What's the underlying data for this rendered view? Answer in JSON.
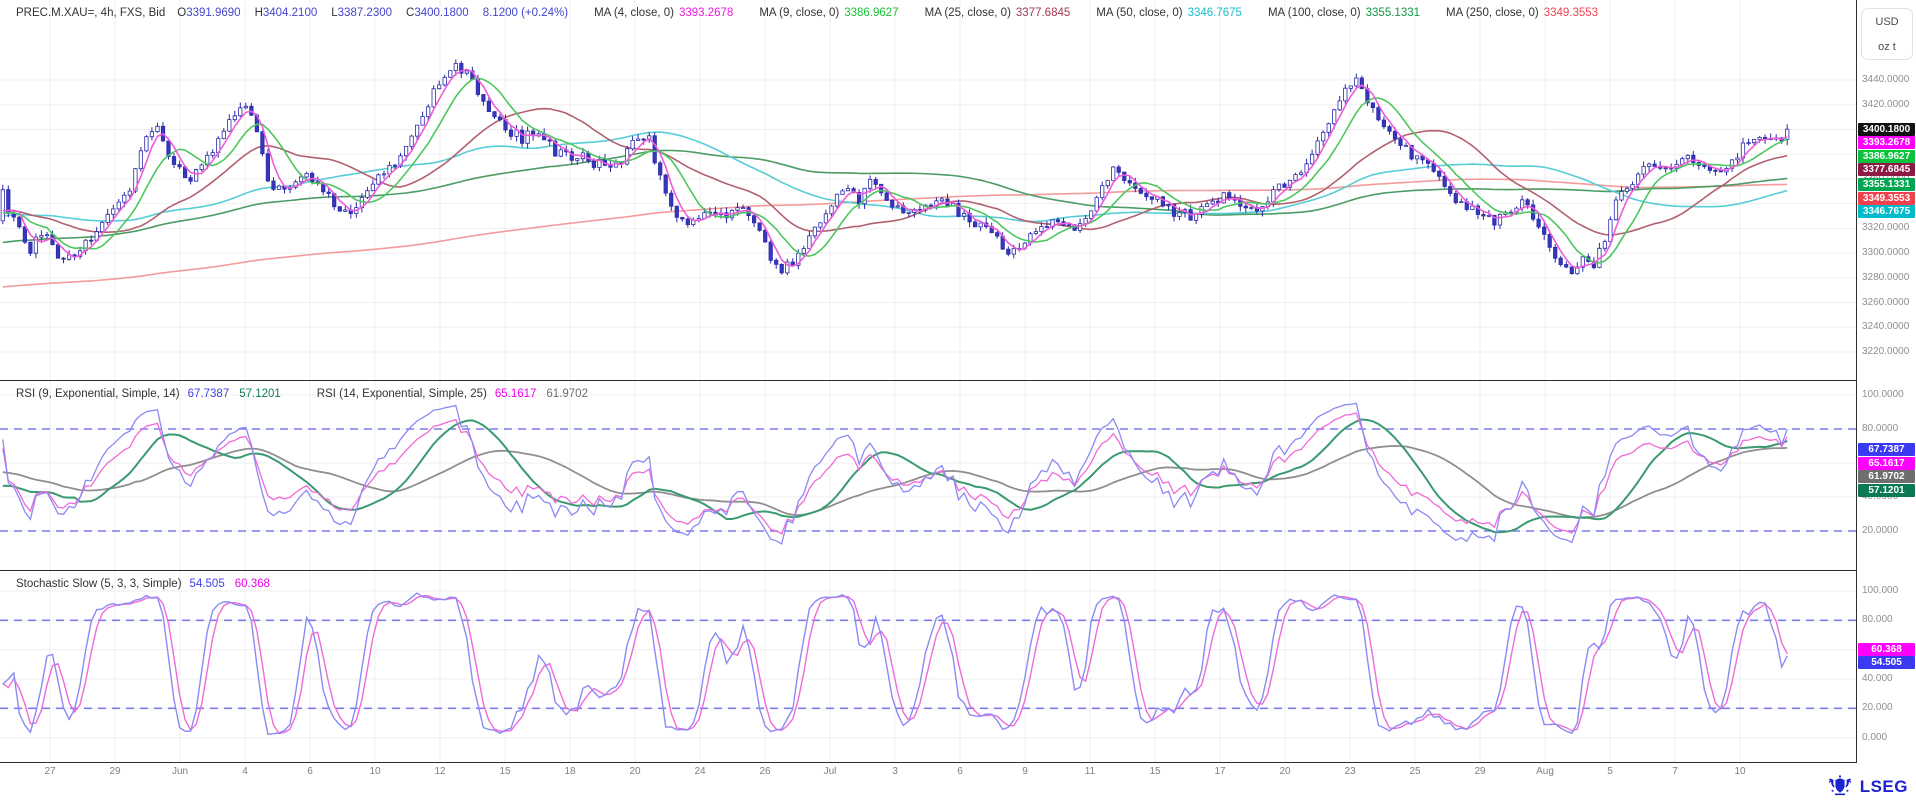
{
  "header": {
    "instrument": "PREC.M.XAU=, 4h, FXS, Bid",
    "ohlc_fields": [
      {
        "label": "O",
        "value": "3391.9690"
      },
      {
        "label": "H",
        "value": "3404.2100"
      },
      {
        "label": "L",
        "value": "3387.2300"
      },
      {
        "label": "C",
        "value": "3400.1800"
      }
    ],
    "change": "8.1200 (+0.24%)",
    "value_color": "#4545cf",
    "mas": [
      {
        "label": "MA (4, close, 0)",
        "value": "3393.2678",
        "color": "#f318e0",
        "line": "#ef5cda"
      },
      {
        "label": "MA (9, close, 0)",
        "value": "3386.9627",
        "color": "#17c233",
        "line": "#4cc75e"
      },
      {
        "label": "MA (25, close, 0)",
        "value": "3377.6845",
        "color": "#a33a55",
        "line": "#b2616e"
      },
      {
        "label": "MA (50, close, 0)",
        "value": "3346.7675",
        "color": "#19bcca",
        "line": "#58cdd8"
      },
      {
        "label": "MA (100, close, 0)",
        "value": "3355.1331",
        "color": "#129a44",
        "line": "#4c9c64"
      },
      {
        "label": "MA (250, close, 0)",
        "value": "3349.3553",
        "color": "#ef4451",
        "line": "#f49b9b"
      }
    ]
  },
  "unit_box": {
    "line1": "USD",
    "line2": "oz t"
  },
  "panels": {
    "main": {
      "yticks": [
        "3440.0000",
        "3420.0000",
        "3360.0000",
        "3320.0000",
        "3300.0000",
        "3280.0000",
        "3260.0000",
        "3240.0000",
        "3220.0000"
      ],
      "badges": [
        {
          "text": "3400.1800",
          "bg": "#131313"
        },
        {
          "text": "3393.2678",
          "bg": "#ff00ff"
        },
        {
          "text": "3386.9627",
          "bg": "#0cc23c"
        },
        {
          "text": "3377.6845",
          "bg": "#8d1a45"
        },
        {
          "text": "3355.1331",
          "bg": "#00a651"
        },
        {
          "text": "3349.3553",
          "bg": "#f2414e"
        },
        {
          "text": "3346.7675",
          "bg": "#00bcca"
        }
      ]
    },
    "rsi": {
      "groups": [
        {
          "label": "RSI (9, Exponential, Simple, 14)",
          "values": [
            {
              "text": "67.7387",
              "color": "#4040ee"
            },
            {
              "text": "57.1201",
              "color": "#0e7c52"
            }
          ]
        },
        {
          "label": "RSI (14, Exponential, Simple, 25)",
          "values": [
            {
              "text": "65.1617",
              "color": "#ee00ee"
            },
            {
              "text": "61.9702",
              "color": "#6e6e6e"
            }
          ]
        }
      ],
      "yticks": [
        "100.0000",
        "80.0000",
        "40.0000",
        "20.0000"
      ],
      "badges": [
        {
          "text": "67.7387",
          "bg": "#3a3af2"
        },
        {
          "text": "65.1617",
          "bg": "#ff00ff"
        },
        {
          "text": "61.9702",
          "bg": "#6e6e6e"
        },
        {
          "text": "57.1201",
          "bg": "#0b7a52"
        }
      ]
    },
    "stoch": {
      "groups": [
        {
          "label": "Stochastic Slow (5, 3, 3, Simple)",
          "values": [
            {
              "text": "54.505",
              "color": "#4040ee"
            },
            {
              "text": "60.368",
              "color": "#ee00ee"
            }
          ]
        }
      ],
      "yticks": [
        "100.000",
        "80.000",
        "40.000",
        "20.000",
        "0.000"
      ],
      "badges": [
        {
          "text": "60.368",
          "bg": "#ff00ff"
        },
        {
          "text": "54.505",
          "bg": "#3a3af2"
        }
      ]
    }
  },
  "logo": {
    "text": "LSEG"
  },
  "colors": {
    "candle_stroke": "#2a2aad",
    "candle_up_fill": "#ffffff",
    "candle_down_fill": "#3737bc",
    "rsi_fast": "#8a8af5",
    "rsi_fast_signal": "#3a9a70",
    "rsi_slow": "#f06ad8",
    "rsi_slow_signal": "#8f8f8f",
    "stoch_k": "#8a8af5",
    "stoch_d": "#f06ad8",
    "level_dashed": "#7b7bef",
    "grid": "#efefef",
    "divider": "#2d2d2d"
  },
  "chart_data": {
    "type": "candlestick",
    "symbol": "PREC.M.XAU=",
    "interval": "4h",
    "source": "FXS",
    "side": "Bid",
    "title": "PREC.M.XAU=, 4h, FXS, Bid",
    "last_ohlc": {
      "open": 3391.969,
      "high": 3404.21,
      "low": 3387.23,
      "close": 3400.18,
      "change": 8.12,
      "change_pct": 0.24
    },
    "overlays": [
      {
        "type": "ma",
        "period": 4,
        "applied": "close",
        "last": 3393.2678
      },
      {
        "type": "ma",
        "period": 9,
        "applied": "close",
        "last": 3386.9627
      },
      {
        "type": "ma",
        "period": 25,
        "applied": "close",
        "last": 3377.6845
      },
      {
        "type": "ma",
        "period": 50,
        "applied": "close",
        "last": 3346.7675
      },
      {
        "type": "ma",
        "period": 100,
        "applied": "close",
        "last": 3355.1331
      },
      {
        "type": "ma",
        "period": 250,
        "applied": "close",
        "last": 3349.3553
      }
    ],
    "indicators": [
      {
        "type": "rsi",
        "params": "9, Exponential, Simple, 14",
        "last": [
          67.7387,
          57.1201
        ]
      },
      {
        "type": "rsi",
        "params": "14, Exponential, Simple, 25",
        "last": [
          65.1617,
          61.9702
        ]
      },
      {
        "type": "stochastic_slow",
        "params": "5, 3, 3, Simple",
        "last": [
          54.505,
          60.368
        ]
      }
    ],
    "y_axis": {
      "main": {
        "unit": "USD / oz t",
        "min": 3200,
        "max": 3460,
        "tick_step": 20
      },
      "rsi": {
        "min": 0,
        "max": 100,
        "levels": [
          80,
          20
        ]
      },
      "stoch": {
        "min": 0,
        "max": 100,
        "levels": [
          80,
          20
        ]
      }
    },
    "x_axis": {
      "ticks": [
        "27",
        "29",
        "Jun",
        "4",
        "6",
        "10",
        "12",
        "15",
        "18",
        "20",
        "24",
        "26",
        "Jul",
        "3",
        "6",
        "9",
        "11",
        "15",
        "17",
        "20",
        "23",
        "25",
        "29",
        "Aug",
        "5",
        "7",
        "10"
      ],
      "range": "May 27 - Aug 10"
    },
    "candles_per_day": 6,
    "visible_days": 54,
    "price_path_anchors": [
      [
        0,
        3345
      ],
      [
        0.4,
        3322
      ],
      [
        0.8,
        3302
      ],
      [
        1.2,
        3318
      ],
      [
        1.6,
        3300
      ],
      [
        2.1,
        3296
      ],
      [
        2.6,
        3312
      ],
      [
        3.2,
        3330
      ],
      [
        3.8,
        3348
      ],
      [
        4.3,
        3392
      ],
      [
        4.6,
        3406
      ],
      [
        5.0,
        3378
      ],
      [
        5.5,
        3362
      ],
      [
        6.0,
        3374
      ],
      [
        6.5,
        3390
      ],
      [
        7.0,
        3412
      ],
      [
        7.3,
        3424
      ],
      [
        7.7,
        3396
      ],
      [
        8.1,
        3350
      ],
      [
        8.6,
        3356
      ],
      [
        9.1,
        3364
      ],
      [
        9.6,
        3354
      ],
      [
        10.1,
        3338
      ],
      [
        10.6,
        3330
      ],
      [
        11.1,
        3354
      ],
      [
        11.6,
        3368
      ],
      [
        12.1,
        3382
      ],
      [
        12.6,
        3410
      ],
      [
        13.1,
        3436
      ],
      [
        13.6,
        3452
      ],
      [
        14.1,
        3442
      ],
      [
        14.6,
        3420
      ],
      [
        15.1,
        3402
      ],
      [
        15.6,
        3394
      ],
      [
        16.1,
        3398
      ],
      [
        16.6,
        3386
      ],
      [
        17.1,
        3376
      ],
      [
        17.6,
        3382
      ],
      [
        18.1,
        3370
      ],
      [
        18.6,
        3372
      ],
      [
        19.0,
        3390
      ],
      [
        19.4,
        3396
      ],
      [
        19.8,
        3364
      ],
      [
        20.2,
        3336
      ],
      [
        20.7,
        3324
      ],
      [
        21.2,
        3334
      ],
      [
        21.8,
        3330
      ],
      [
        22.3,
        3338
      ],
      [
        22.8,
        3320
      ],
      [
        23.2,
        3296
      ],
      [
        23.5,
        3286
      ],
      [
        24.0,
        3298
      ],
      [
        24.5,
        3322
      ],
      [
        25.0,
        3340
      ],
      [
        25.4,
        3354
      ],
      [
        25.8,
        3346
      ],
      [
        26.2,
        3358
      ],
      [
        26.7,
        3342
      ],
      [
        27.2,
        3330
      ],
      [
        27.8,
        3340
      ],
      [
        28.4,
        3342
      ],
      [
        29.0,
        3330
      ],
      [
        29.5,
        3322
      ],
      [
        30.0,
        3310
      ],
      [
        30.4,
        3300
      ],
      [
        30.8,
        3310
      ],
      [
        31.3,
        3318
      ],
      [
        31.8,
        3324
      ],
      [
        32.3,
        3318
      ],
      [
        32.8,
        3332
      ],
      [
        33.2,
        3358
      ],
      [
        33.5,
        3368
      ],
      [
        33.9,
        3358
      ],
      [
        34.4,
        3350
      ],
      [
        34.9,
        3342
      ],
      [
        35.4,
        3330
      ],
      [
        35.9,
        3328
      ],
      [
        36.4,
        3340
      ],
      [
        36.9,
        3348
      ],
      [
        37.4,
        3338
      ],
      [
        37.9,
        3336
      ],
      [
        38.4,
        3352
      ],
      [
        38.9,
        3358
      ],
      [
        39.3,
        3370
      ],
      [
        39.7,
        3392
      ],
      [
        40.1,
        3412
      ],
      [
        40.5,
        3430
      ],
      [
        40.8,
        3440
      ],
      [
        41.2,
        3422
      ],
      [
        41.6,
        3402
      ],
      [
        42.1,
        3388
      ],
      [
        42.6,
        3378
      ],
      [
        43.1,
        3368
      ],
      [
        43.6,
        3350
      ],
      [
        44.1,
        3338
      ],
      [
        44.6,
        3330
      ],
      [
        45.0,
        3326
      ],
      [
        45.4,
        3334
      ],
      [
        45.8,
        3342
      ],
      [
        46.2,
        3330
      ],
      [
        46.5,
        3312
      ],
      [
        46.9,
        3292
      ],
      [
        47.3,
        3284
      ],
      [
        47.7,
        3294
      ],
      [
        48.0,
        3290
      ],
      [
        48.3,
        3306
      ],
      [
        48.6,
        3340
      ],
      [
        48.9,
        3354
      ],
      [
        49.3,
        3362
      ],
      [
        49.8,
        3374
      ],
      [
        50.3,
        3368
      ],
      [
        50.8,
        3380
      ],
      [
        51.3,
        3372
      ],
      [
        51.8,
        3368
      ],
      [
        52.3,
        3378
      ],
      [
        52.6,
        3390
      ],
      [
        53.0,
        3396
      ],
      [
        53.4,
        3388
      ],
      [
        53.7,
        3394
      ],
      [
        54,
        3400.2
      ]
    ]
  }
}
